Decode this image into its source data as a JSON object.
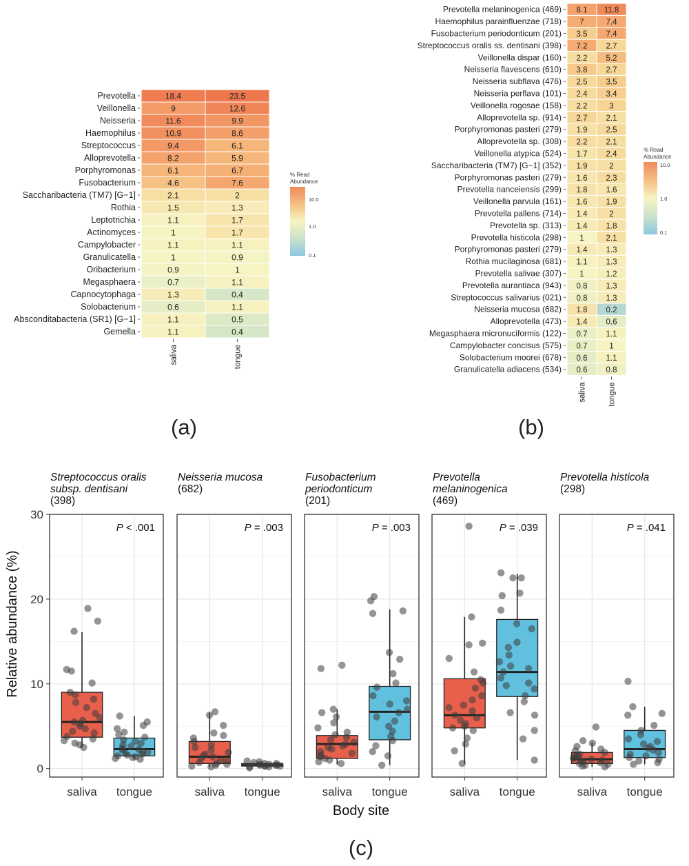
{
  "chart_data": [
    {
      "type": "heatmap",
      "panel_label": "(a)",
      "columns": [
        "saliva",
        "tongue"
      ],
      "rows": [
        "Prevotella",
        "Veillonella",
        "Neisseria",
        "Haemophilus",
        "Streptococcus",
        "Alloprevotella",
        "Porphyromonas",
        "Fusobacterium",
        "Saccharibacteria (TM7) [G−1]",
        "Rothia",
        "Leptotrichia",
        "Actinomyces",
        "Campylobacter",
        "Granulicatella",
        "Oribacterium",
        "Megasphaera",
        "Capnocytophaga",
        "Solobacterium",
        "Absconditabacteria (SR1) [G−1]",
        "Gemella"
      ],
      "values": [
        [
          18.4,
          23.5
        ],
        [
          9,
          12.6
        ],
        [
          11.6,
          9.9
        ],
        [
          10.9,
          8.6
        ],
        [
          9.4,
          6.1
        ],
        [
          8.2,
          5.9
        ],
        [
          6.1,
          6.7
        ],
        [
          4.6,
          7.6
        ],
        [
          2.1,
          2
        ],
        [
          1.5,
          1.3
        ],
        [
          1.1,
          1.7
        ],
        [
          1,
          1.7
        ],
        [
          1.1,
          1.1
        ],
        [
          1,
          0.9
        ],
        [
          0.9,
          1
        ],
        [
          0.7,
          1.1
        ],
        [
          1.3,
          0.4
        ],
        [
          0.6,
          1.1
        ],
        [
          1.1,
          0.5
        ],
        [
          1.1,
          0.4
        ]
      ],
      "legend": {
        "title": "% Read Abundance",
        "ticks": [
          "10.0",
          "1.0",
          "0.1"
        ],
        "scale": "log10",
        "range": [
          0.1,
          10
        ]
      }
    },
    {
      "type": "heatmap",
      "panel_label": "(b)",
      "columns": [
        "saliva",
        "tongue"
      ],
      "rows": [
        "Prevotella melaninogenica (469)",
        "Haemophilus parainfluenzae (718)",
        "Fusobacterium periodonticum (201)",
        "Streptococcus oralis ss. dentisani (398)",
        "Veillonella dispar (160)",
        "Neisseria flavescens (610)",
        "Neisseria subflava (476)",
        "Neisseria perflava (101)",
        "Veillonella rogosae (158)",
        "Alloprevotella sp. (914)",
        "Porphyromonas pasteri (279)",
        "Alloprevotella sp. (308)",
        "Veillonella atypica (524)",
        "Saccharibacteria (TM7) [G−1] (352)",
        "Porphyromonas pasteri (279)",
        "Prevotella nanceiensis (299)",
        "Veillonella parvula (161)",
        "Prevotella pallens (714)",
        "Prevotella sp. (313)",
        "Prevotella histicola (298)",
        "Porphyromonas pasteri (279)",
        "Rothia mucilaginosa (681)",
        "Prevotella salivae (307)",
        "Prevotella aurantiaca (943)",
        "Streptococcus salivarius (021)",
        "Neisseria mucosa (682)",
        "Alloprevotella (473)",
        "Megasphaera micronuciformis (122)",
        "Campylobacter concisus (575)",
        "Solobacterium moorei (678)",
        "Granulicatella adiacens (534)"
      ],
      "values": [
        [
          8.1,
          11.8
        ],
        [
          7,
          7.4
        ],
        [
          3.5,
          7.4
        ],
        [
          7.2,
          2.7
        ],
        [
          2.2,
          5.2
        ],
        [
          3.8,
          2.7
        ],
        [
          2.5,
          3.5
        ],
        [
          2.4,
          3.4
        ],
        [
          2.2,
          3
        ],
        [
          2.7,
          2.1
        ],
        [
          1.9,
          2.5
        ],
        [
          2.2,
          2.1
        ],
        [
          1.7,
          2.4
        ],
        [
          1.9,
          2
        ],
        [
          1.6,
          2.3
        ],
        [
          1.8,
          1.6
        ],
        [
          1.6,
          1.9
        ],
        [
          1.4,
          2
        ],
        [
          1.4,
          1.8
        ],
        [
          1,
          2.1
        ],
        [
          1.4,
          1.3
        ],
        [
          1.1,
          1.3
        ],
        [
          1,
          1.2
        ],
        [
          0.8,
          1.3
        ],
        [
          0.8,
          1.3
        ],
        [
          1.8,
          0.2
        ],
        [
          1.4,
          0.6
        ],
        [
          0.7,
          1.1
        ],
        [
          0.7,
          1
        ],
        [
          0.6,
          1.1
        ],
        [
          0.6,
          0.8
        ]
      ],
      "legend": {
        "title": "% Read Abundance",
        "ticks": [
          "10.0",
          "1.0",
          "0.1"
        ],
        "scale": "log10",
        "range": [
          0.1,
          10
        ]
      }
    },
    {
      "type": "box",
      "panel_label": "(c)",
      "ylabel": "Relative abundance (%)",
      "xlabel": "Body site",
      "categories": [
        "saliva",
        "tongue"
      ],
      "yticks": [
        "0",
        "10",
        "20",
        "30"
      ],
      "ylim": [
        -1,
        30
      ],
      "colors": {
        "saliva": "#E8604C",
        "tongue": "#62C0DF"
      },
      "panels": [
        {
          "title_italic": [
            "Streptococcus oralis",
            "subsp. dentisani"
          ],
          "title_id": "(398)",
          "p_prefix": "P",
          "p_text": " < .001",
          "box": {
            "saliva": [
              2.5,
              3.7,
              5.5,
              9,
              16.1
            ],
            "tongue": [
              1.1,
              1.5,
              2.3,
              3.6,
              6.2
            ]
          },
          "points": {
            "saliva": [
              18.9,
              17.4,
              16.2,
              11.7,
              11.5,
              10.1,
              9,
              8.7,
              8.2,
              7.8,
              7.2,
              6.5,
              6,
              5.7,
              5.5,
              5.3,
              5,
              4.7,
              4.4,
              4.2,
              3.8,
              3.5,
              3.3,
              3,
              2.8,
              2.5
            ],
            "tongue": [
              6.2,
              5.5,
              5.1,
              4.7,
              4.3,
              4,
              3.7,
              3.4,
              3.2,
              3,
              2.8,
              2.6,
              2.4,
              2.3,
              2.2,
              2,
              1.9,
              1.8,
              1.7,
              1.6,
              1.5,
              1.4,
              1.3,
              1.2,
              1.1
            ]
          }
        },
        {
          "title_italic": [
            "Neisseria mucosa"
          ],
          "title_id": "(682)",
          "p_prefix": "P",
          "p_text": " = .003",
          "box": {
            "saliva": [
              0.2,
              0.6,
              1.4,
              3.2,
              6.6
            ],
            "tongue": [
              0.1,
              0.3,
              0.4,
              0.6,
              0.9
            ]
          },
          "points": {
            "saliva": [
              6.7,
              6.3,
              5.1,
              4.2,
              3.9,
              3.6,
              3.2,
              2.8,
              2.5,
              2.2,
              1.9,
              1.7,
              1.5,
              1.4,
              1.2,
              1,
              0.9,
              0.7,
              0.6,
              0.5,
              0.4,
              0.3,
              0.2
            ],
            "tongue": [
              0.9,
              0.8,
              0.7,
              0.6,
              0.6,
              0.5,
              0.5,
              0.4,
              0.4,
              0.4,
              0.3,
              0.3,
              0.3,
              0.2,
              0.2,
              0.1
            ]
          }
        },
        {
          "title_italic": [
            "Fusobacterium",
            "periodonticum"
          ],
          "title_id": "(201)",
          "p_prefix": "P",
          "p_text": " = .003",
          "box": {
            "saliva": [
              0.5,
              1.2,
              2.9,
              3.9,
              7
            ],
            "tongue": [
              0.4,
              3.4,
              6.7,
              9.7,
              18.8
            ]
          },
          "points": {
            "saliva": [
              12.2,
              11.8,
              7,
              6.6,
              6.1,
              5.4,
              4.8,
              4.3,
              4,
              3.7,
              3.4,
              3.1,
              2.9,
              2.7,
              2.5,
              2.3,
              2,
              1.8,
              1.6,
              1.4,
              1.2,
              1,
              0.8,
              0.6
            ],
            "tongue": [
              20.3,
              19.8,
              18.6,
              18.3,
              13.7,
              12.9,
              11.2,
              10.1,
              9.6,
              8.6,
              8,
              7.6,
              7,
              6.6,
              6.1,
              5.6,
              5,
              4.4,
              3.8,
              3.3,
              2.7,
              2,
              1.5,
              0.4
            ]
          }
        },
        {
          "title_italic": [
            "Prevotella",
            "melaninogenica"
          ],
          "title_id": "(469)",
          "p_prefix": "P",
          "p_text": " = .039",
          "box": {
            "saliva": [
              0.6,
              4.8,
              6.3,
              10.6,
              17.9
            ],
            "tongue": [
              1,
              8.5,
              11.4,
              17.6,
              23
            ]
          },
          "points": {
            "saliva": [
              28.6,
              17.9,
              14.8,
              14.6,
              13,
              11.4,
              10.5,
              10.1,
              9.5,
              8.6,
              8.1,
              7.5,
              7.2,
              6.8,
              6.3,
              6,
              5.7,
              5.3,
              5,
              4.8,
              4.5,
              3.6,
              2.9,
              2.1,
              0.6
            ],
            "tongue": [
              23.1,
              22.5,
              22.5,
              20.7,
              20.4,
              18.7,
              17.1,
              16.5,
              14.9,
              14.3,
              13.4,
              12.6,
              12.1,
              11.8,
              11.4,
              10.7,
              10.1,
              9.8,
              9.4,
              8.6,
              7.9,
              6.6,
              6.3,
              4.5,
              3.5,
              1
            ]
          }
        },
        {
          "title_italic": [
            "Prevotella histicola"
          ],
          "title_id": "(298)",
          "p_prefix": "P",
          "p_text": " = .041",
          "box": {
            "saliva": [
              0.2,
              0.6,
              1.1,
              1.9,
              3.1
            ],
            "tongue": [
              0.5,
              1.3,
              2.3,
              4.5,
              7.3
            ]
          },
          "points": {
            "saliva": [
              4.9,
              3.3,
              3,
              2.6,
              2.3,
              2.1,
              1.9,
              1.7,
              1.5,
              1.4,
              1.3,
              1.2,
              1.1,
              1,
              0.9,
              0.8,
              0.7,
              0.6,
              0.5,
              0.4,
              0.3,
              0.2
            ],
            "tongue": [
              10.3,
              7.3,
              6.5,
              6.3,
              5.1,
              4.5,
              4,
              3.5,
              3.2,
              2.9,
              2.6,
              2.4,
              2.2,
              1.9,
              1.7,
              1.5,
              1.3,
              1.1,
              0.9,
              0.7,
              0.5
            ]
          }
        }
      ]
    }
  ]
}
